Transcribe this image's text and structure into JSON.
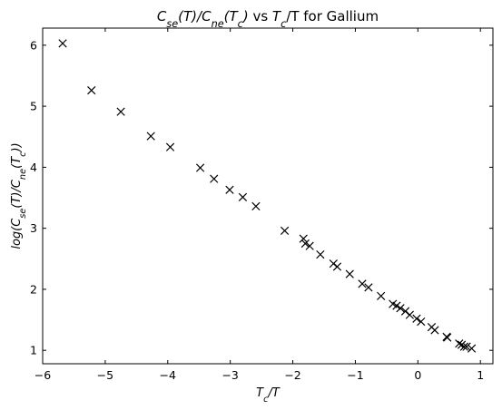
{
  "chart_data": {
    "type": "scatter",
    "title": "$C_{se}(T)/C_{ne}(T_c)$ vs $T_c$/T for Gallium",
    "xlabel": "$T_c/T$",
    "ylabel": "$log(C_{se}(T)/C_{ne}(T_c))$",
    "xlim": [
      -6.0,
      1.2
    ],
    "ylim": [
      0.78,
      6.28
    ],
    "x_ticks": [
      -6,
      -5,
      -4,
      -3,
      -2,
      -1,
      0,
      1
    ],
    "y_ticks": [
      1,
      2,
      3,
      4,
      5,
      6
    ],
    "grid": false,
    "marker": "x",
    "color": "#000000",
    "x": [
      -5.68,
      -5.22,
      -4.75,
      -4.27,
      -3.96,
      -3.48,
      -3.26,
      -3.01,
      -2.8,
      -2.59,
      -2.13,
      -1.83,
      -1.8,
      -1.73,
      -1.56,
      -1.35,
      -1.29,
      -1.09,
      -0.89,
      -0.79,
      -0.59,
      -0.4,
      -0.34,
      -0.28,
      -0.2,
      -0.13,
      -0.02,
      0.05,
      0.22,
      0.27,
      0.46,
      0.47,
      0.66,
      0.7,
      0.74,
      0.78,
      0.86
    ],
    "y": [
      6.03,
      5.26,
      4.91,
      4.51,
      4.33,
      3.99,
      3.81,
      3.63,
      3.51,
      3.36,
      2.96,
      2.83,
      2.75,
      2.71,
      2.57,
      2.42,
      2.37,
      2.25,
      2.09,
      2.03,
      1.89,
      1.76,
      1.73,
      1.69,
      1.64,
      1.58,
      1.52,
      1.47,
      1.38,
      1.33,
      1.22,
      1.21,
      1.11,
      1.09,
      1.06,
      1.06,
      1.03
    ]
  }
}
